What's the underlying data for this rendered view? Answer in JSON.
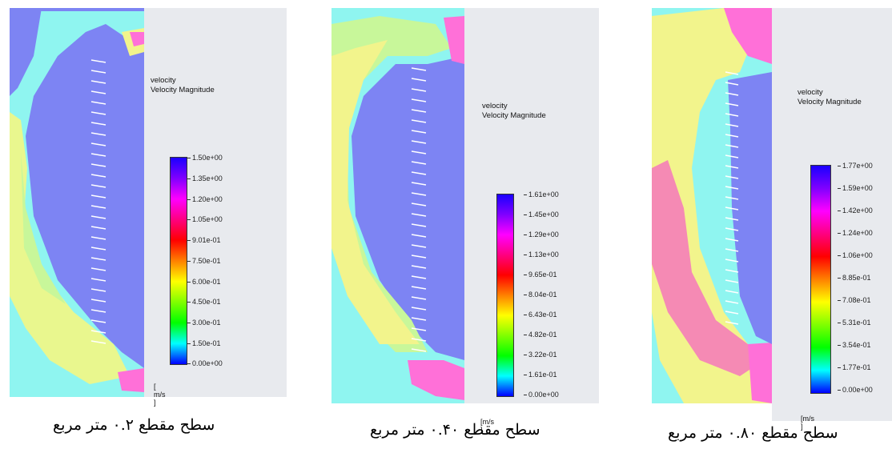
{
  "panels": [
    {
      "legend_title": "velocity",
      "legend_subtitle": "Velocity Magnitude",
      "ticks": [
        "1.50e+00",
        "1.35e+00",
        "1.20e+00",
        "1.05e+00",
        "9.01e-01",
        "7.50e-01",
        "6.00e-01",
        "4.50e-01",
        "3.00e-01",
        "1.50e-01",
        "0.00e+00"
      ],
      "unit": "[ m/s ]",
      "caption": "سطح مقطع ۰.۲ متر مربع"
    },
    {
      "legend_title": "velocity",
      "legend_subtitle": "Velocity Magnitude",
      "ticks": [
        "1.61e+00",
        "1.45e+00",
        "1.29e+00",
        "1.13e+00",
        "9.65e-01",
        "8.04e-01",
        "6.43e-01",
        "4.82e-01",
        "3.22e-01",
        "1.61e-01",
        "0.00e+00"
      ],
      "unit": "[m/s ]",
      "caption": "سطح مقطع ۰.۴۰ متر مربع"
    },
    {
      "legend_title": "velocity",
      "legend_subtitle": "Velocity Magnitude",
      "ticks": [
        "1.77e+00",
        "1.59e+00",
        "1.42e+00",
        "1.24e+00",
        "1.06e+00",
        "8.85e-01",
        "7.08e-01",
        "5.31e-01",
        "3.54e-01",
        "1.77e-01",
        "0.00e+00"
      ],
      "unit": "[m/s ]",
      "caption": "سطح مقطع ۰.۸۰ متر مربع"
    }
  ],
  "colors": {
    "background_low": "#7d84f3",
    "cyan": "#8ff5f0",
    "green_yellow": "#c8f79a",
    "yellow": "#f2f48c",
    "pink": "#f58ab4",
    "magenta": "#ff70d8",
    "legend_bg": "#e8eaee"
  }
}
